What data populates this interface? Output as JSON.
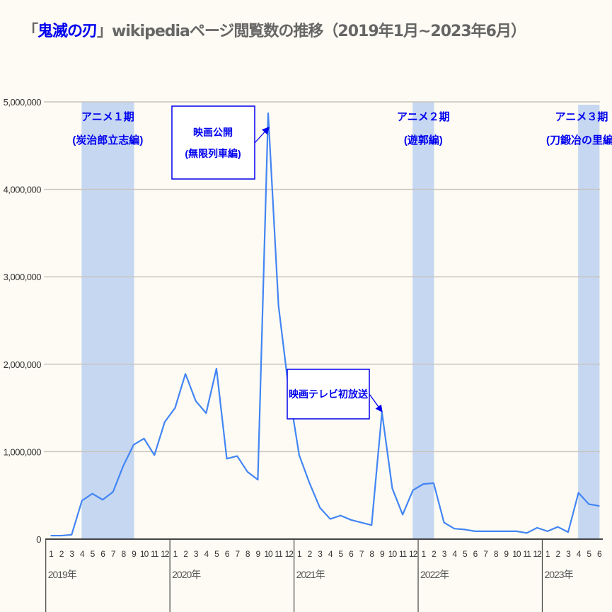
{
  "title": {
    "open_bracket": "「",
    "highlight": "鬼滅の刃",
    "rest": "」wikipediaページ閲覧数の推移（2019年1月~2023年6月）"
  },
  "chart_data": {
    "type": "line",
    "title": "「鬼滅の刃」wikipediaページ閲覧数の推移（2019年1月~2023年6月）",
    "xlabel": "",
    "ylabel": "",
    "ylim": [
      0,
      5000000
    ],
    "yticks": [
      0,
      1000000,
      2000000,
      3000000,
      4000000,
      5000000
    ],
    "ytick_labels": [
      "0",
      "1,000,000",
      "2,000,000",
      "3,000,000",
      "4,000,000",
      "5,000,000"
    ],
    "grid": true,
    "years": [
      {
        "label": "2019年",
        "months": [
          "1",
          "2",
          "3",
          "4",
          "5",
          "6",
          "7",
          "8",
          "9",
          "10",
          "11",
          "12"
        ]
      },
      {
        "label": "2020年",
        "months": [
          "1",
          "2",
          "3",
          "4",
          "5",
          "6",
          "7",
          "8",
          "9",
          "10",
          "11",
          "12"
        ]
      },
      {
        "label": "2021年",
        "months": [
          "1",
          "2",
          "3",
          "4",
          "5",
          "6",
          "7",
          "8",
          "9",
          "10",
          "11",
          "12"
        ]
      },
      {
        "label": "2022年",
        "months": [
          "1",
          "2",
          "3",
          "4",
          "5",
          "6",
          "7",
          "8",
          "9",
          "10",
          "11",
          "12"
        ]
      },
      {
        "label": "2023年",
        "months": [
          "1",
          "2",
          "3",
          "4",
          "5",
          "6"
        ]
      }
    ],
    "series": [
      {
        "color": "#4285f4",
        "values": [
          40000,
          40000,
          50000,
          440000,
          520000,
          450000,
          540000,
          840000,
          1080000,
          1150000,
          960000,
          1340000,
          1500000,
          1890000,
          1580000,
          1440000,
          1950000,
          920000,
          950000,
          770000,
          680000,
          4870000,
          2670000,
          1700000,
          960000,
          640000,
          360000,
          230000,
          270000,
          220000,
          190000,
          160000,
          1450000,
          580000,
          280000,
          560000,
          630000,
          640000,
          190000,
          120000,
          110000,
          90000,
          90000,
          90000,
          90000,
          90000,
          70000,
          130000,
          90000,
          140000,
          80000,
          530000,
          400000,
          380000
        ]
      }
    ],
    "shaded_periods": [
      {
        "from": "2019-04",
        "to": "2019-09",
        "label_line1": "アニメ１期",
        "label_line2": "(炭治郎立志編)"
      },
      {
        "from": "2021-12",
        "to": "2022-02",
        "label_line1": "アニメ２期",
        "label_line2": "(遊郭編)"
      },
      {
        "from": "2023-04",
        "to": "2023-06",
        "label_line1": "アニメ３期",
        "label_line2": "(刀鍛冶の里編)"
      }
    ],
    "annotations": [
      {
        "target": "2020-10",
        "line1": "映画公開",
        "line2": "(無限列車編)"
      },
      {
        "target": "2021-09",
        "line1": "映画テレビ初放送",
        "line2": ""
      }
    ],
    "colors": {
      "band": "#c6d7f2",
      "annotation": "#0000ee",
      "grid": "#c8c4bc",
      "axis_text": "#333333"
    }
  }
}
